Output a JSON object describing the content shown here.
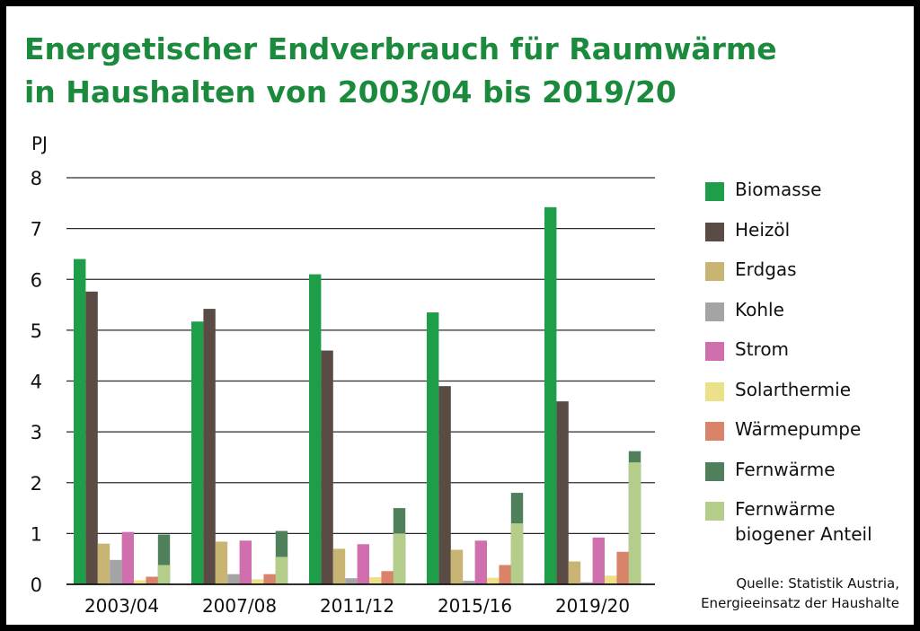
{
  "chart_data": {
    "type": "bar",
    "title_line1": "Energetischer Endverbrauch für Raumwärme",
    "title_line2": "in Haushalten von 2003/04 bis 2019/20",
    "ylabel": "PJ",
    "xlabel": "",
    "ylim": [
      0,
      8
    ],
    "yticks": [
      0,
      1,
      2,
      3,
      4,
      5,
      6,
      7,
      8
    ],
    "grid": true,
    "legend_position": "right",
    "categories": [
      "2003/04",
      "2007/08",
      "2011/12",
      "2015/16",
      "2019/20"
    ],
    "series": [
      {
        "name": "Biomasse",
        "color": "#1e9e48",
        "values": [
          6.4,
          5.17,
          6.1,
          5.35,
          7.42
        ]
      },
      {
        "name": "Heizöl",
        "color": "#5a4c45",
        "values": [
          5.76,
          5.42,
          4.6,
          3.9,
          3.6
        ]
      },
      {
        "name": "Erdgas",
        "color": "#c8b574",
        "values": [
          0.8,
          0.84,
          0.7,
          0.68,
          0.45
        ]
      },
      {
        "name": "Kohle",
        "color": "#a4a4a4",
        "values": [
          0.48,
          0.2,
          0.12,
          0.07,
          0.04
        ]
      },
      {
        "name": "Strom",
        "color": "#cf6fae",
        "values": [
          1.03,
          0.86,
          0.79,
          0.86,
          0.92
        ]
      },
      {
        "name": "Solarthermie",
        "color": "#ece18a",
        "values": [
          0.08,
          0.1,
          0.14,
          0.13,
          0.17
        ]
      },
      {
        "name": "Wärmepumpe",
        "color": "#d9846a",
        "values": [
          0.15,
          0.2,
          0.26,
          0.38,
          0.64
        ]
      },
      {
        "name": "Fernwärme",
        "color": "#4f7f5b",
        "values": [
          0.98,
          1.05,
          1.5,
          1.8,
          2.62
        ]
      },
      {
        "name": "Fernwärme\nbiogener Anteil",
        "color": "#b4cd8a",
        "values": [
          0.38,
          0.54,
          1.0,
          1.2,
          2.4
        ]
      }
    ],
    "stacked_overlay": {
      "outer": "Fernwärme",
      "inner": "Fernwärme\nbiogener Anteil"
    }
  },
  "source": {
    "line1": "Quelle: Statistik Austria,",
    "line2": "Energieeinsatz der Haushalte"
  }
}
